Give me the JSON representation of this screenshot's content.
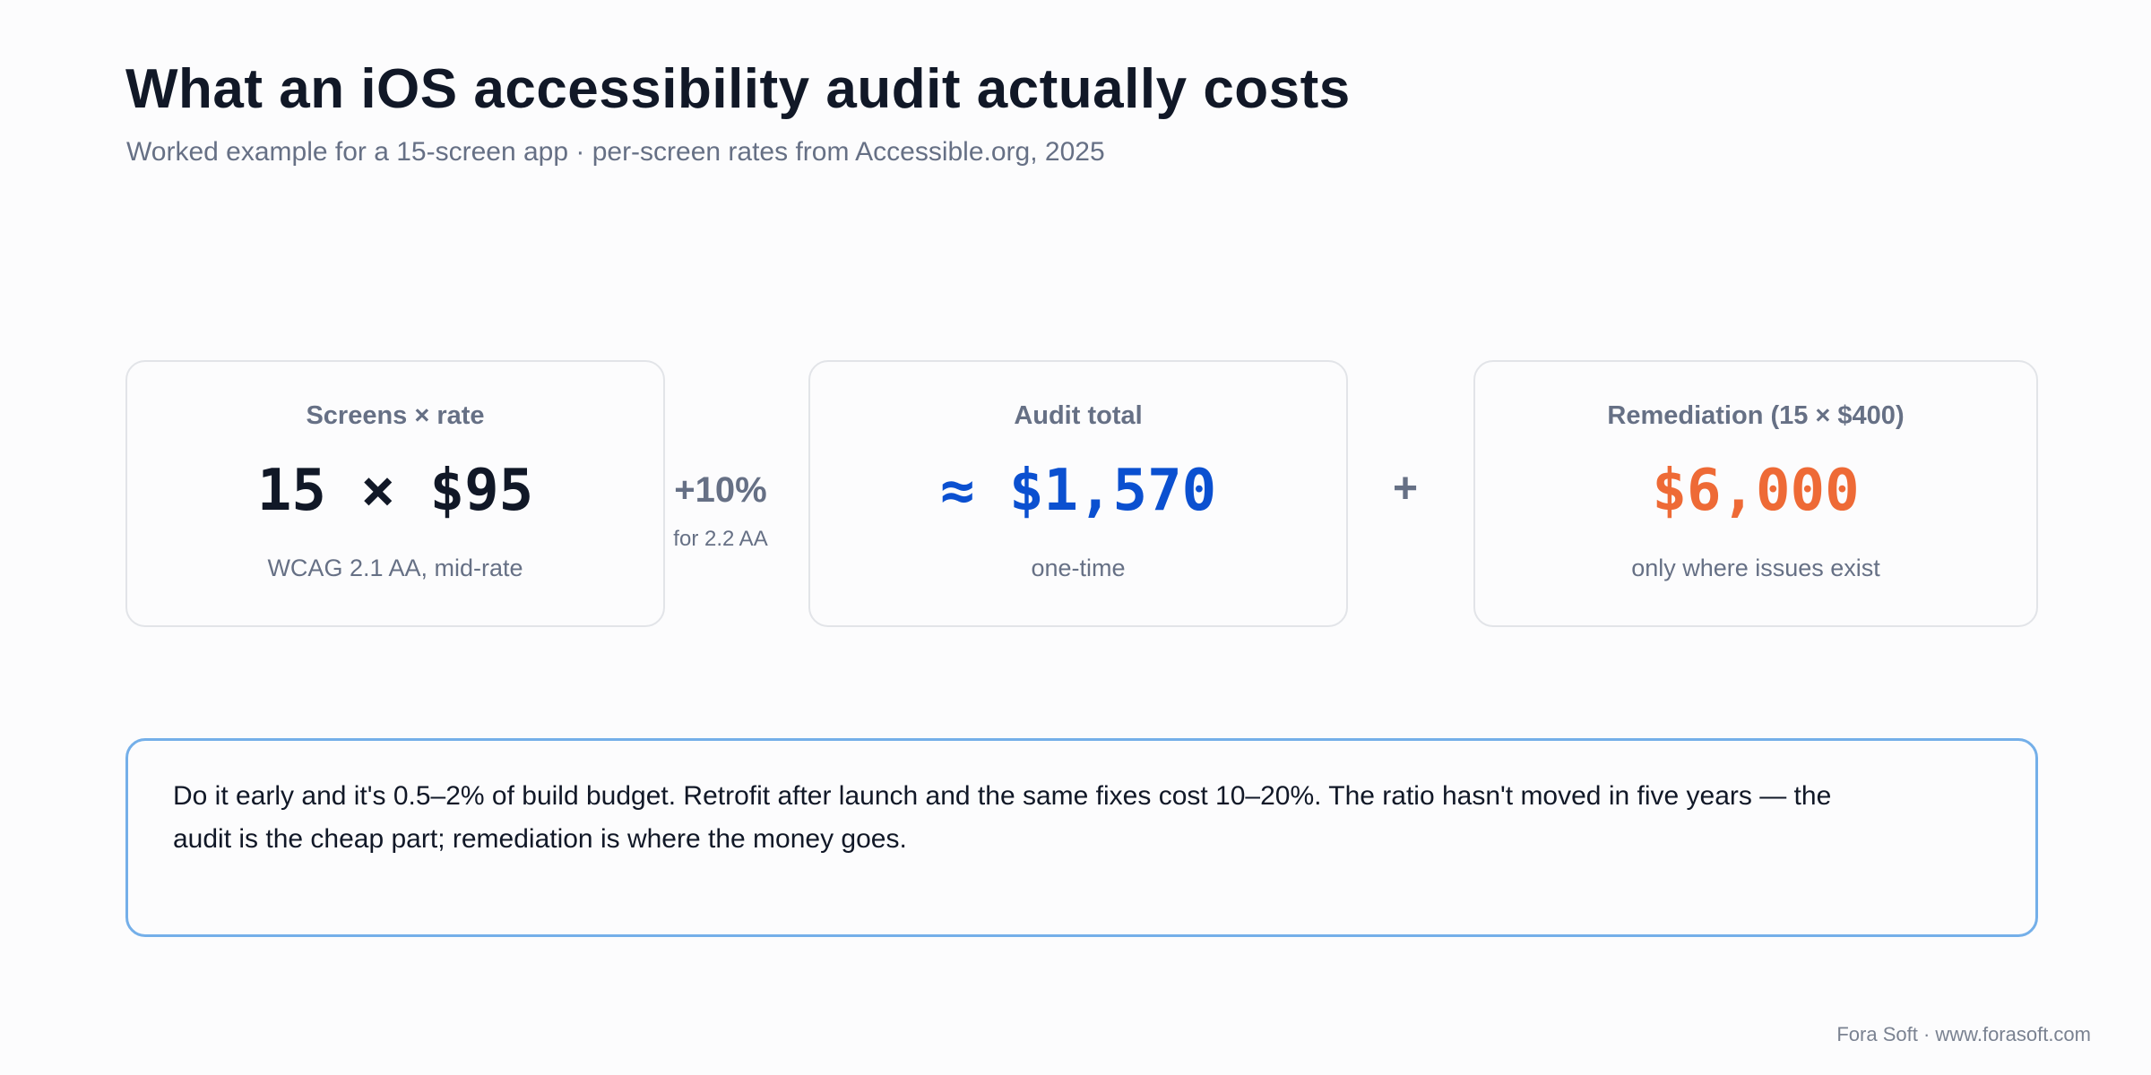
{
  "header": {
    "title": "What an iOS accessibility audit actually costs",
    "subtitle": "Worked example for a 15-screen app · per-screen rates from Accessible.org, 2025"
  },
  "cards": [
    {
      "label": "Screens × rate",
      "value": "15 × $95",
      "note": "WCAG 2.1 AA, mid-rate",
      "color": "#111827"
    },
    {
      "label": "Audit total",
      "value": "≈ $1,570",
      "note": "one-time",
      "color": "#0b50d0"
    },
    {
      "label": "Remediation (15 × $400)",
      "value": "$6,000",
      "note": "only where issues exist",
      "color": "#ee6a36"
    }
  ],
  "operators": {
    "adjustment": "+10%",
    "adjustment_note": "for 2.2 AA",
    "plus": "+"
  },
  "callout": {
    "text": "Do it early and it's 0.5–2% of build budget. Retrofit after launch and the same fixes cost 10–20%. The ratio hasn't moved in five years — the audit is the cheap part; remediation is where the money goes."
  },
  "footer": {
    "credit": "Fora Soft · www.forasoft.com"
  }
}
